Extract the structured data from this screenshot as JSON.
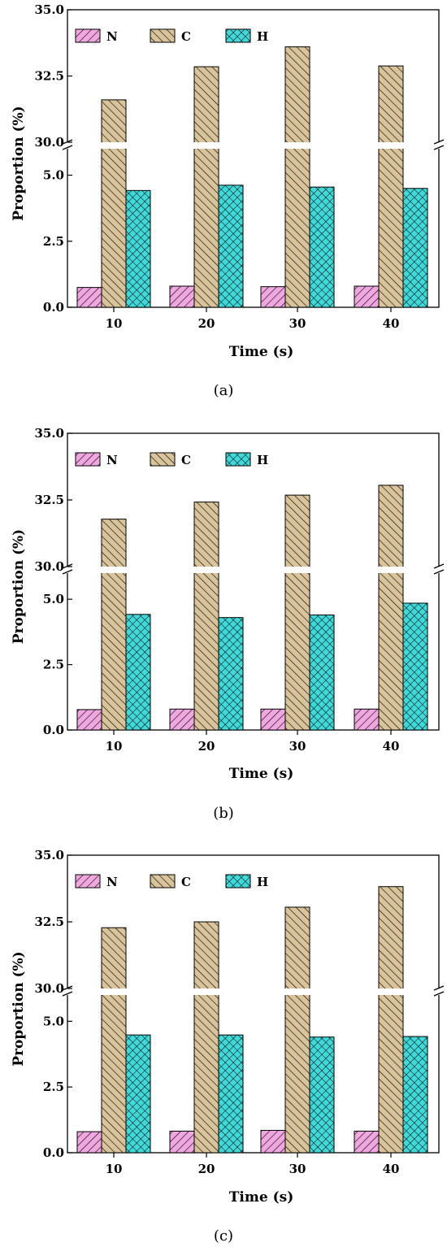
{
  "legend": {
    "N": "N",
    "C": "C",
    "H": "H"
  },
  "colors": {
    "N": "#f0a7e0",
    "C": "#d9c39a",
    "H": "#40d8d8"
  },
  "chart_data": [
    {
      "type": "bar",
      "panel_label": "(a)",
      "categories": [
        "10",
        "20",
        "30",
        "40"
      ],
      "series": [
        {
          "name": "N",
          "values": [
            0.75,
            0.8,
            0.78,
            0.8
          ]
        },
        {
          "name": "C",
          "values": [
            31.6,
            32.85,
            33.6,
            32.88
          ]
        },
        {
          "name": "H",
          "values": [
            4.42,
            4.62,
            4.55,
            4.5
          ]
        }
      ],
      "xlabel": "Time (s)",
      "ylabel": "Proportion (%)",
      "y_lower_range": [
        0.0,
        6.0
      ],
      "y_upper_range": [
        30.0,
        35.0
      ],
      "yticks_lower": [
        "0.0",
        "2.5",
        "5.0"
      ],
      "yticks_upper": [
        "30.0",
        "32.5",
        "35.0"
      ],
      "axis_break": true,
      "legend_position": "top-left",
      "grid": false
    },
    {
      "type": "bar",
      "panel_label": "(b)",
      "categories": [
        "10",
        "20",
        "30",
        "40"
      ],
      "series": [
        {
          "name": "N",
          "values": [
            0.78,
            0.8,
            0.8,
            0.8
          ]
        },
        {
          "name": "C",
          "values": [
            31.78,
            32.42,
            32.68,
            33.05
          ]
        },
        {
          "name": "H",
          "values": [
            4.42,
            4.3,
            4.4,
            4.85
          ]
        }
      ],
      "xlabel": "Time (s)",
      "ylabel": "Proportion (%)",
      "y_lower_range": [
        0.0,
        6.0
      ],
      "y_upper_range": [
        30.0,
        35.0
      ],
      "yticks_lower": [
        "0.0",
        "2.5",
        "5.0"
      ],
      "yticks_upper": [
        "30.0",
        "32.5",
        "35.0"
      ],
      "axis_break": true,
      "legend_position": "top-left",
      "grid": false
    },
    {
      "type": "bar",
      "panel_label": "(c)",
      "categories": [
        "10",
        "20",
        "30",
        "40"
      ],
      "series": [
        {
          "name": "N",
          "values": [
            0.8,
            0.82,
            0.85,
            0.82
          ]
        },
        {
          "name": "C",
          "values": [
            32.28,
            32.5,
            33.05,
            33.82
          ]
        },
        {
          "name": "H",
          "values": [
            4.48,
            4.48,
            4.4,
            4.42
          ]
        }
      ],
      "xlabel": "Time (s)",
      "ylabel": "Proportion (%)",
      "y_lower_range": [
        0.0,
        6.0
      ],
      "y_upper_range": [
        30.0,
        35.0
      ],
      "yticks_lower": [
        "0.0",
        "2.5",
        "5.0"
      ],
      "yticks_upper": [
        "30.0",
        "32.5",
        "35.0"
      ],
      "axis_break": true,
      "legend_position": "top-left",
      "grid": false
    }
  ]
}
